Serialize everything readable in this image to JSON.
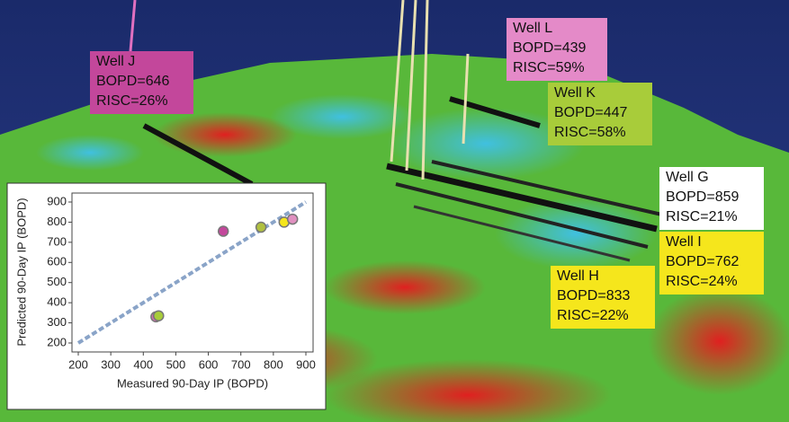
{
  "wells": [
    {
      "name": "Well J",
      "bopd": "BOPD=646",
      "risc": "RISC=26%",
      "color": "#c3479b"
    },
    {
      "name": "Well L",
      "bopd": "BOPD=439",
      "risc": "RISC=59%",
      "color": "#e48ac8"
    },
    {
      "name": "Well K",
      "bopd": "BOPD=447",
      "risc": "RISC=58%",
      "color": "#a8cc3a"
    },
    {
      "name": "Well G",
      "bopd": "BOPD=859",
      "risc": "RISC=21%",
      "color": "#ffffff"
    },
    {
      "name": "Well I",
      "bopd": "BOPD=762",
      "risc": "RISC=24%",
      "color": "#f5e61c"
    },
    {
      "name": "Well H",
      "bopd": "BOPD=833",
      "risc": "RISC=22%",
      "color": "#f5e61c"
    }
  ],
  "chart_data": {
    "type": "scatter",
    "x_label": "Measured 90-Day IP (BOPD)",
    "y_label": "Predicted 90-Day IP (BOPD)",
    "x": [
      439,
      447,
      646,
      762,
      833,
      859
    ],
    "values": [
      330,
      335,
      755,
      775,
      800,
      815
    ],
    "colors": [
      "#d070b0",
      "#a8cc3a",
      "#c3479b",
      "#b0c040",
      "#f5e61c",
      "#e090c0"
    ],
    "xlim": [
      200,
      900
    ],
    "ylim": [
      200,
      900
    ],
    "xticks": [
      200,
      300,
      400,
      500,
      600,
      700,
      800,
      900
    ],
    "yticks": [
      200,
      300,
      400,
      500,
      600,
      700,
      800,
      900
    ]
  }
}
